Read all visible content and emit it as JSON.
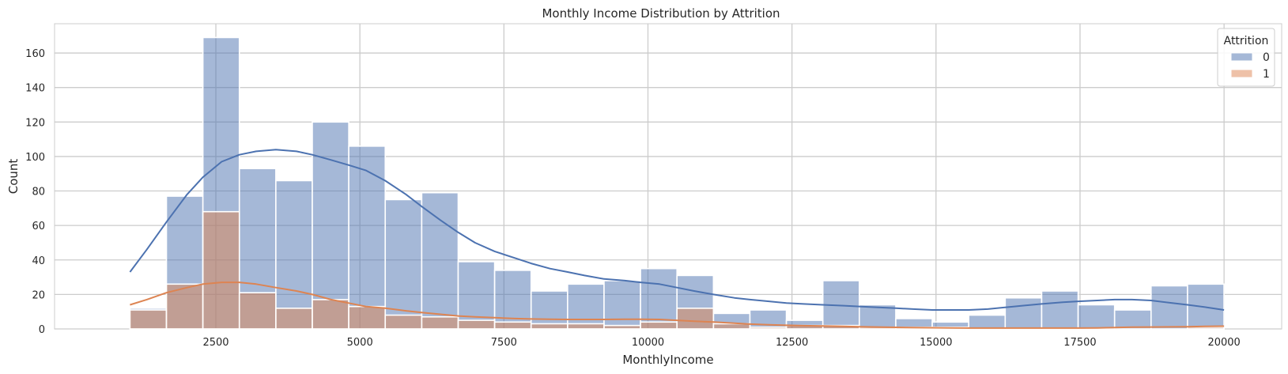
{
  "chart_data": {
    "type": "histogram",
    "title": "Monthly Income Distribution by Attrition",
    "xlabel": "MonthlyIncome",
    "ylabel": "Count",
    "xlim": [
      -300,
      21000
    ],
    "ylim": [
      0,
      177
    ],
    "xticks": [
      2500,
      5000,
      7500,
      10000,
      12500,
      15000,
      17500,
      20000
    ],
    "yticks": [
      0,
      20,
      40,
      60,
      80,
      100,
      120,
      140,
      160
    ],
    "grid": true,
    "legend": {
      "title": "Attrition",
      "placement": "top-right"
    },
    "bin_edges": [
      1009,
      1642,
      2275,
      2908,
      3541,
      4174,
      4807,
      5440,
      6073,
      6706,
      7339,
      7972,
      8605,
      9238,
      9871,
      10504,
      11137,
      11770,
      12403,
      13036,
      13669,
      14302,
      14935,
      15568,
      16201,
      16834,
      17467,
      18100,
      18733,
      19366,
      19999
    ],
    "series": [
      {
        "name": "0",
        "color": "#4c72b0",
        "values": [
          12,
          77,
          169,
          93,
          86,
          120,
          106,
          75,
          79,
          39,
          34,
          22,
          26,
          28,
          35,
          31,
          9,
          11,
          5,
          28,
          14,
          6,
          4,
          8,
          18,
          22,
          14,
          11,
          25,
          26
        ],
        "kde": [
          [
            1009,
            33
          ],
          [
            1300,
            46
          ],
          [
            1642,
            62
          ],
          [
            2000,
            78
          ],
          [
            2275,
            88
          ],
          [
            2600,
            97
          ],
          [
            2908,
            101
          ],
          [
            3200,
            103
          ],
          [
            3541,
            104
          ],
          [
            3900,
            103
          ],
          [
            4174,
            101
          ],
          [
            4500,
            98
          ],
          [
            4807,
            95
          ],
          [
            5100,
            92
          ],
          [
            5440,
            86
          ],
          [
            5800,
            78
          ],
          [
            6073,
            71
          ],
          [
            6400,
            63
          ],
          [
            6706,
            56
          ],
          [
            7000,
            50
          ],
          [
            7339,
            45
          ],
          [
            7700,
            41
          ],
          [
            7972,
            38
          ],
          [
            8300,
            35
          ],
          [
            8605,
            33
          ],
          [
            8900,
            31
          ],
          [
            9238,
            29
          ],
          [
            9600,
            28
          ],
          [
            9871,
            27
          ],
          [
            10200,
            26
          ],
          [
            10504,
            24
          ],
          [
            10800,
            22
          ],
          [
            11137,
            20
          ],
          [
            11500,
            18
          ],
          [
            11770,
            17
          ],
          [
            12100,
            16
          ],
          [
            12403,
            15
          ],
          [
            12700,
            14.5
          ],
          [
            13036,
            14
          ],
          [
            13400,
            13.5
          ],
          [
            13669,
            13
          ],
          [
            14000,
            12.5
          ],
          [
            14302,
            12
          ],
          [
            14600,
            11.5
          ],
          [
            14935,
            11
          ],
          [
            15300,
            11
          ],
          [
            15568,
            11
          ],
          [
            15900,
            11.5
          ],
          [
            16201,
            12.5
          ],
          [
            16500,
            13.5
          ],
          [
            16834,
            14.5
          ],
          [
            17200,
            15.5
          ],
          [
            17467,
            16
          ],
          [
            17800,
            16.5
          ],
          [
            18100,
            17
          ],
          [
            18400,
            17
          ],
          [
            18733,
            16.5
          ],
          [
            19100,
            15
          ],
          [
            19366,
            14
          ],
          [
            19700,
            12.5
          ],
          [
            19999,
            11
          ]
        ]
      },
      {
        "name": "1",
        "color": "#dd8452",
        "values": [
          11,
          26,
          68,
          21,
          12,
          17,
          13,
          8,
          7,
          5,
          4,
          3,
          3,
          2,
          4,
          12,
          3,
          1,
          2,
          2,
          1,
          1,
          1,
          0,
          0,
          0,
          0,
          0,
          0,
          1
        ],
        "kde": [
          [
            1009,
            14
          ],
          [
            1300,
            17
          ],
          [
            1642,
            21
          ],
          [
            2000,
            24
          ],
          [
            2275,
            26
          ],
          [
            2600,
            27
          ],
          [
            2908,
            27
          ],
          [
            3200,
            26
          ],
          [
            3541,
            24
          ],
          [
            3900,
            22
          ],
          [
            4174,
            20
          ],
          [
            4500,
            17
          ],
          [
            4807,
            15
          ],
          [
            5100,
            13
          ],
          [
            5440,
            12
          ],
          [
            5800,
            10.5
          ],
          [
            6073,
            9.5
          ],
          [
            6400,
            8.5
          ],
          [
            6706,
            7.5
          ],
          [
            7000,
            7
          ],
          [
            7339,
            6.5
          ],
          [
            7700,
            6
          ],
          [
            7972,
            5.8
          ],
          [
            8300,
            5.6
          ],
          [
            8605,
            5.5
          ],
          [
            8900,
            5.5
          ],
          [
            9238,
            5.5
          ],
          [
            9600,
            5.6
          ],
          [
            9871,
            5.6
          ],
          [
            10200,
            5.5
          ],
          [
            10504,
            5
          ],
          [
            10800,
            4.5
          ],
          [
            11137,
            4
          ],
          [
            11500,
            3.3
          ],
          [
            11770,
            2.8
          ],
          [
            12100,
            2.4
          ],
          [
            12403,
            2.1
          ],
          [
            12700,
            1.9
          ],
          [
            13036,
            1.7
          ],
          [
            13400,
            1.5
          ],
          [
            13669,
            1.3
          ],
          [
            14000,
            1.1
          ],
          [
            14302,
            0.9
          ],
          [
            14600,
            0.8
          ],
          [
            14935,
            0.7
          ],
          [
            15300,
            0.6
          ],
          [
            15568,
            0.5
          ],
          [
            15900,
            0.5
          ],
          [
            16201,
            0.5
          ],
          [
            16500,
            0.5
          ],
          [
            16834,
            0.5
          ],
          [
            17200,
            0.5
          ],
          [
            17467,
            0.5
          ],
          [
            17800,
            0.6
          ],
          [
            18100,
            0.8
          ],
          [
            18400,
            1
          ],
          [
            18733,
            1.1
          ],
          [
            19100,
            1.2
          ],
          [
            19366,
            1.3
          ],
          [
            19700,
            1.5
          ],
          [
            19999,
            1.6
          ]
        ]
      }
    ]
  }
}
